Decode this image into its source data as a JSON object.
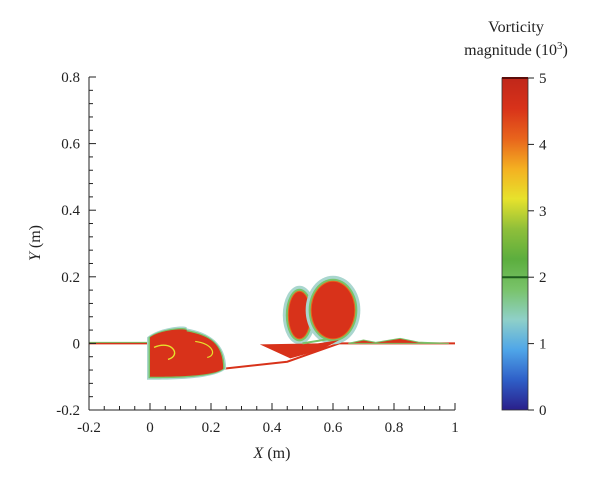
{
  "chart_data": {
    "type": "heatmap",
    "xlabel_var": "X",
    "xlabel_unit": "(m)",
    "ylabel_var": "Y",
    "ylabel_unit": "(m)",
    "xlim": [
      -0.2,
      1.0
    ],
    "ylim": [
      -0.2,
      0.8
    ],
    "x_ticks": [
      -0.2,
      0,
      0.2,
      0.4,
      0.6,
      0.8,
      1
    ],
    "x_tick_labels": [
      "-0.2",
      "0",
      "0.2",
      "0.4",
      "0.6",
      "0.8",
      "1"
    ],
    "y_ticks": [
      -0.2,
      0,
      0.2,
      0.4,
      0.6,
      0.8
    ],
    "y_tick_labels": [
      "-0.2",
      "0",
      "0.2",
      "0.4",
      "0.6",
      "0.8"
    ],
    "colorbar": {
      "title_line1": "Vorticity",
      "title_line2_prefix": "magnitude (10",
      "title_line2_exp": "3",
      "title_line2_suffix": ")",
      "range": [
        0,
        5
      ],
      "ticks": [
        0,
        1,
        2,
        3,
        4,
        5
      ],
      "tick_labels": [
        "0",
        "1",
        "2",
        "3",
        "4",
        "5"
      ],
      "highlight_level": 2,
      "colors": [
        "#2a1f8a",
        "#2f5fc8",
        "#4fa6e8",
        "#8fd0c8",
        "#79c36a",
        "#5cae3e",
        "#8fbf3a",
        "#e7e22c",
        "#f4b021",
        "#e8641c",
        "#d8321a",
        "#c0271a"
      ]
    },
    "features": {
      "bed_profile": [
        [
          -0.2,
          0.0
        ],
        [
          0.0,
          0.0
        ],
        [
          0.0,
          -0.1
        ],
        [
          0.45,
          -0.055
        ],
        [
          0.62,
          0.0
        ],
        [
          1.0,
          0.0
        ]
      ],
      "vortices": [
        {
          "name": "downstream-lower-region",
          "x": [
            0.0,
            0.24
          ],
          "y": [
            -0.1,
            0.03
          ],
          "peak": 5
        },
        {
          "name": "vortex-left-pair",
          "cx": 0.49,
          "cy": 0.085,
          "rx": 0.035,
          "ry": 0.07,
          "peak": 5
        },
        {
          "name": "vortex-right-pair",
          "cx": 0.6,
          "cy": 0.1,
          "rx": 0.07,
          "ry": 0.085,
          "peak": 5
        },
        {
          "name": "surface-shear-layer",
          "x": [
            0.65,
            0.98
          ],
          "y": [
            -0.005,
            0.02
          ],
          "peak": 5
        }
      ]
    }
  }
}
